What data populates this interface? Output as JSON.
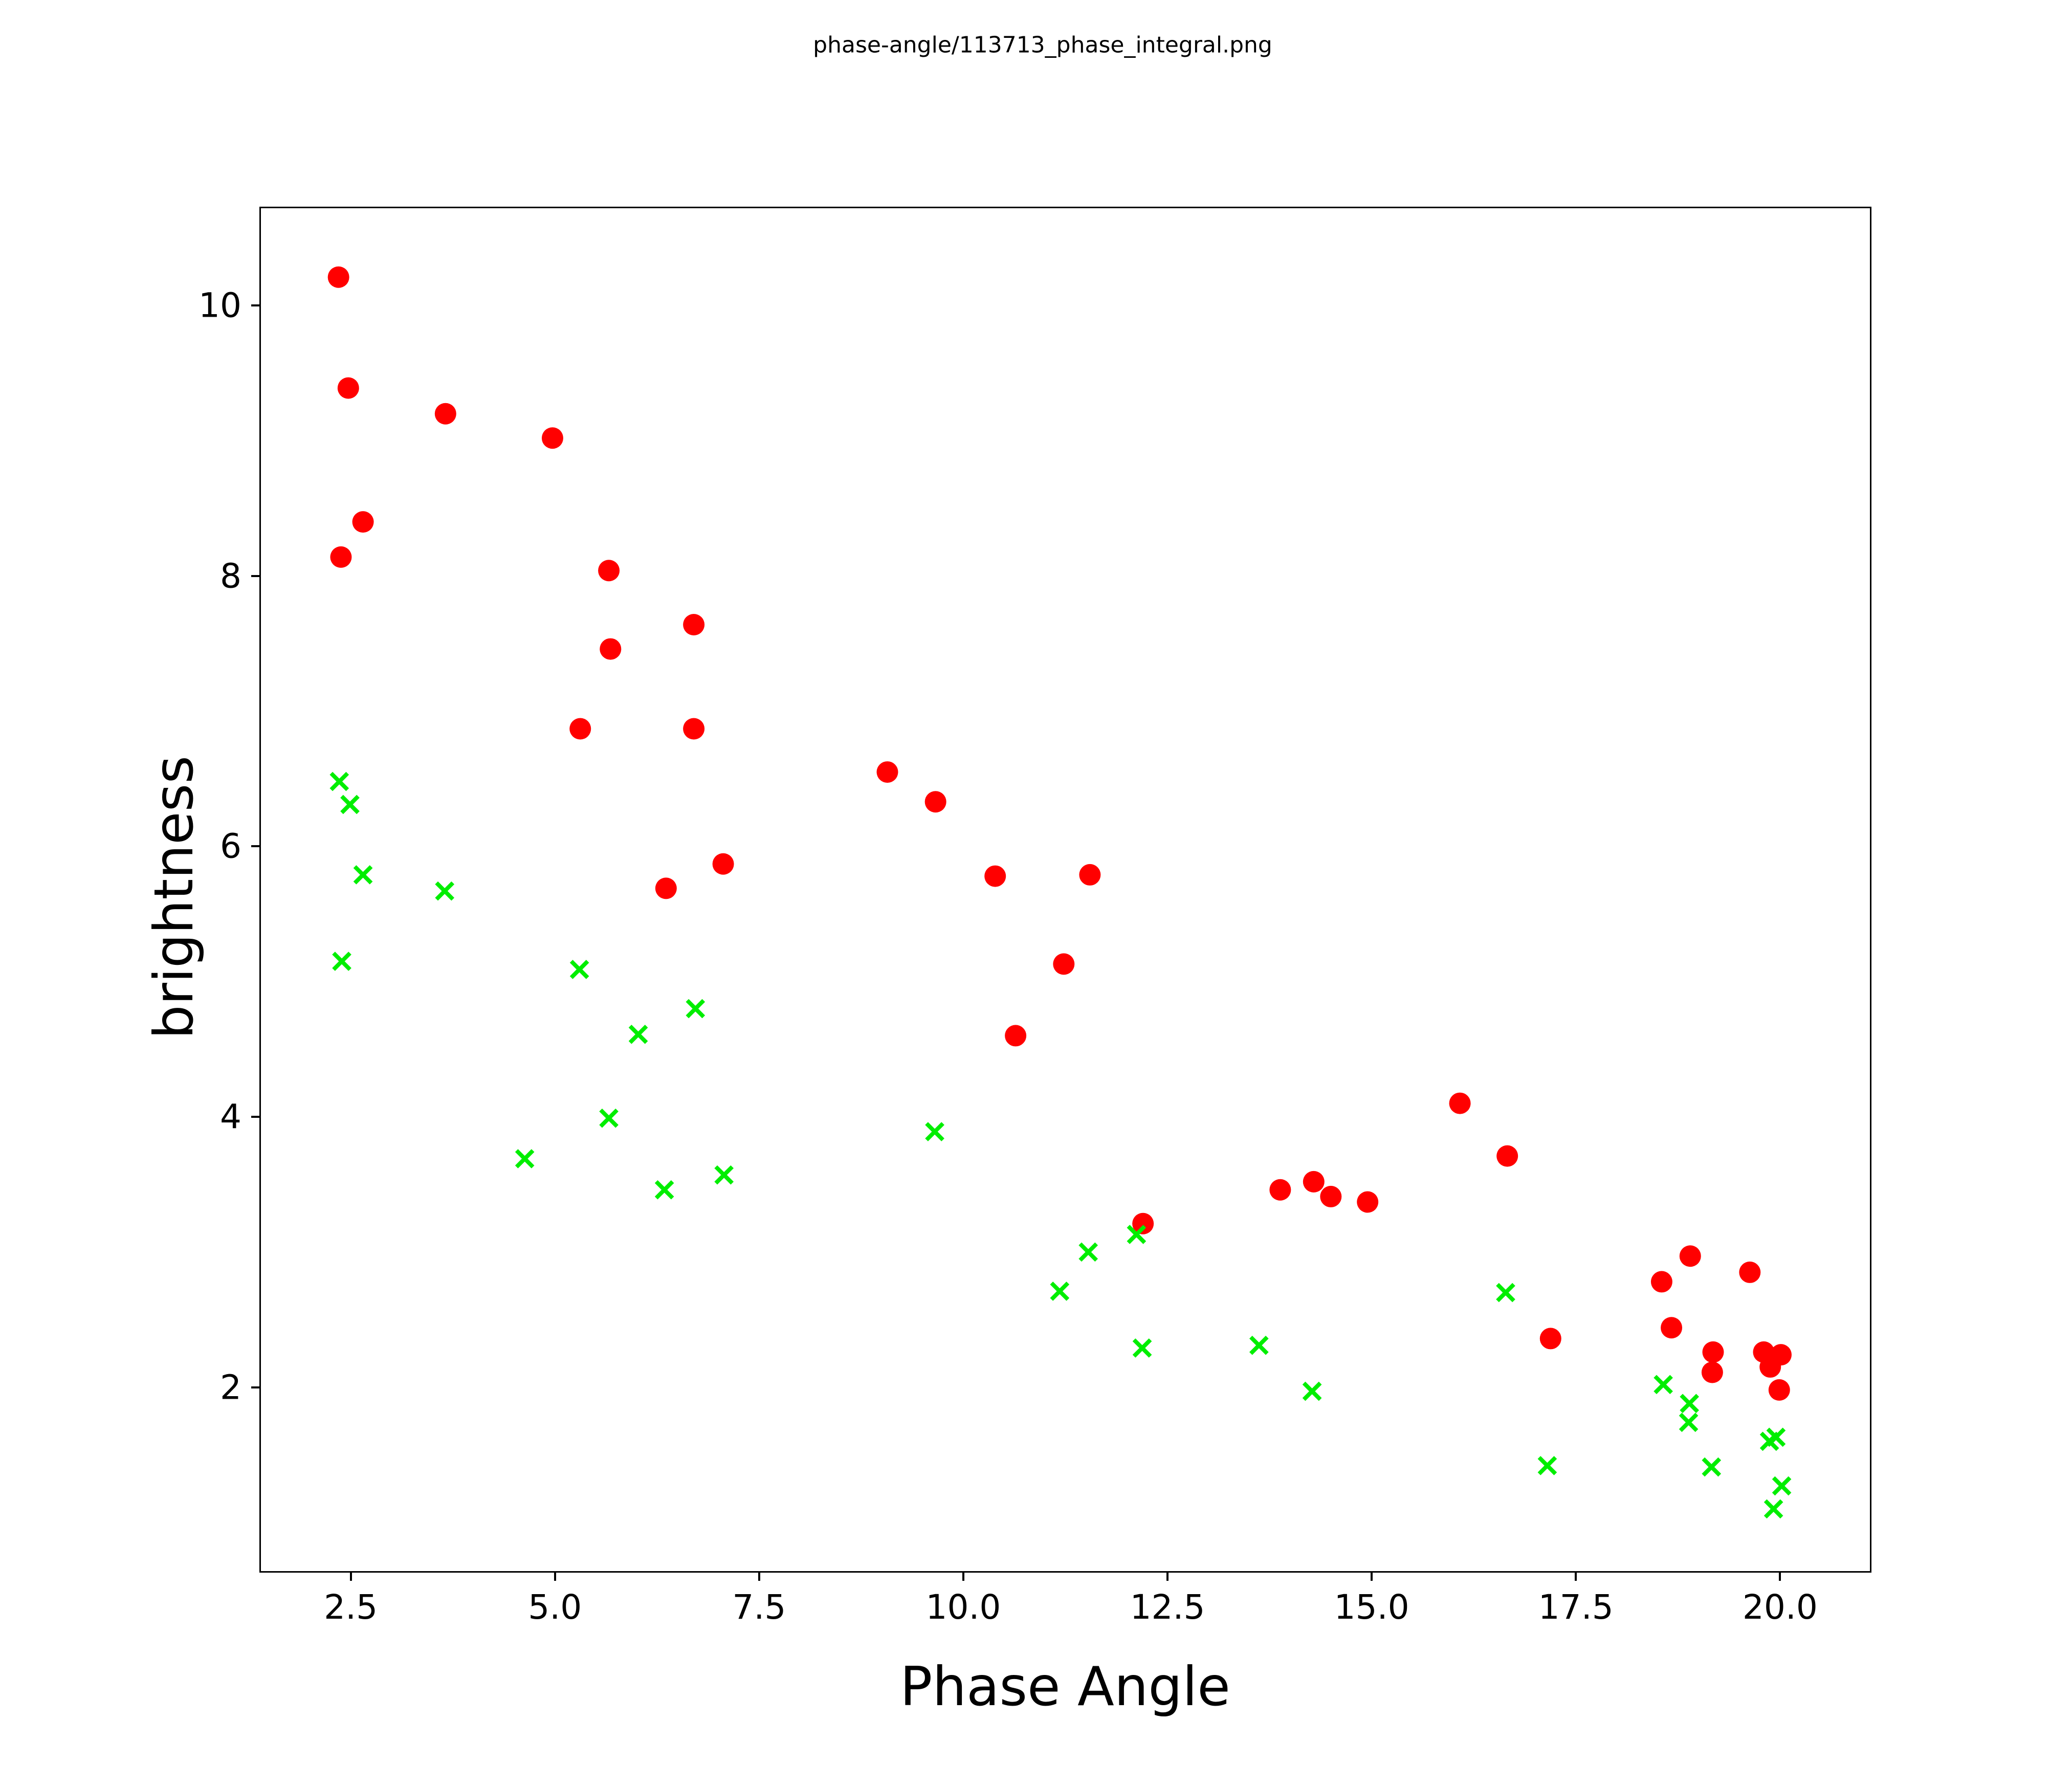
{
  "title": "phase-angle/113713_phase_integral.png",
  "chart_data": {
    "type": "scatter",
    "title": "phase-angle/113713_phase_integral.png",
    "xlabel": "Phase Angle",
    "ylabel": "brightness",
    "xlim": [
      1.4,
      21.1
    ],
    "ylim": [
      0.64,
      10.72
    ],
    "grid": false,
    "legend": false,
    "background_color": "#ffffff",
    "axis_color": "#000000",
    "x_ticks": [
      {
        "value": 2.5,
        "label": "2.5"
      },
      {
        "value": 5.0,
        "label": "5.0"
      },
      {
        "value": 7.5,
        "label": "7.5"
      },
      {
        "value": 10.0,
        "label": "10.0"
      },
      {
        "value": 12.5,
        "label": "12.5"
      },
      {
        "value": 15.0,
        "label": "15.0"
      },
      {
        "value": 17.5,
        "label": "17.5"
      },
      {
        "value": 20.0,
        "label": "20.0"
      }
    ],
    "y_ticks": [
      {
        "value": 2,
        "label": "2"
      },
      {
        "value": 4,
        "label": "4"
      },
      {
        "value": 6,
        "label": "6"
      },
      {
        "value": 8,
        "label": "8"
      },
      {
        "value": 10,
        "label": "10"
      }
    ],
    "series": [
      {
        "name": "red-circles",
        "marker": "circle",
        "color": "#ff0000",
        "marker_radius": 21,
        "points": [
          [
            2.35,
            10.21
          ],
          [
            2.47,
            9.39
          ],
          [
            3.66,
            9.2
          ],
          [
            4.97,
            9.02
          ],
          [
            2.65,
            8.4
          ],
          [
            2.38,
            8.14
          ],
          [
            5.66,
            8.04
          ],
          [
            6.7,
            7.64
          ],
          [
            5.68,
            7.46
          ],
          [
            5.31,
            6.87
          ],
          [
            6.7,
            6.87
          ],
          [
            9.07,
            6.55
          ],
          [
            9.66,
            6.33
          ],
          [
            6.36,
            5.69
          ],
          [
            7.06,
            5.87
          ],
          [
            10.39,
            5.78
          ],
          [
            11.55,
            5.79
          ],
          [
            11.23,
            5.13
          ],
          [
            10.64,
            4.6
          ],
          [
            12.2,
            3.21
          ],
          [
            13.88,
            3.46
          ],
          [
            14.29,
            3.52
          ],
          [
            14.5,
            3.41
          ],
          [
            14.95,
            3.37
          ],
          [
            16.08,
            4.1
          ],
          [
            16.66,
            3.71
          ],
          [
            17.19,
            2.36
          ],
          [
            18.9,
            2.97
          ],
          [
            19.63,
            2.85
          ],
          [
            18.55,
            2.78
          ],
          [
            18.67,
            2.44
          ],
          [
            19.18,
            2.26
          ],
          [
            19.8,
            2.26
          ],
          [
            20.01,
            2.24
          ],
          [
            19.88,
            2.15
          ],
          [
            19.17,
            2.11
          ],
          [
            19.99,
            1.98
          ]
        ]
      },
      {
        "name": "green-crosses",
        "marker": "x",
        "color": "#00ee00",
        "marker_half_size": 16,
        "stroke_width": 8,
        "points": [
          [
            2.36,
            6.48
          ],
          [
            2.49,
            6.31
          ],
          [
            2.65,
            5.79
          ],
          [
            3.65,
            5.67
          ],
          [
            2.39,
            5.15
          ],
          [
            5.3,
            5.09
          ],
          [
            6.02,
            4.61
          ],
          [
            6.72,
            4.8
          ],
          [
            5.66,
            3.99
          ],
          [
            4.63,
            3.69
          ],
          [
            6.34,
            3.46
          ],
          [
            7.07,
            3.57
          ],
          [
            9.65,
            3.89
          ],
          [
            11.18,
            2.71
          ],
          [
            11.53,
            3.0
          ],
          [
            12.12,
            3.13
          ],
          [
            12.19,
            2.29
          ],
          [
            13.62,
            2.31
          ],
          [
            14.27,
            1.97
          ],
          [
            16.64,
            2.7
          ],
          [
            17.15,
            1.42
          ],
          [
            18.57,
            2.02
          ],
          [
            18.89,
            1.88
          ],
          [
            18.88,
            1.74
          ],
          [
            19.16,
            1.41
          ],
          [
            19.87,
            1.6
          ],
          [
            19.95,
            1.63
          ],
          [
            20.02,
            1.27
          ],
          [
            19.92,
            1.1
          ]
        ]
      }
    ]
  }
}
